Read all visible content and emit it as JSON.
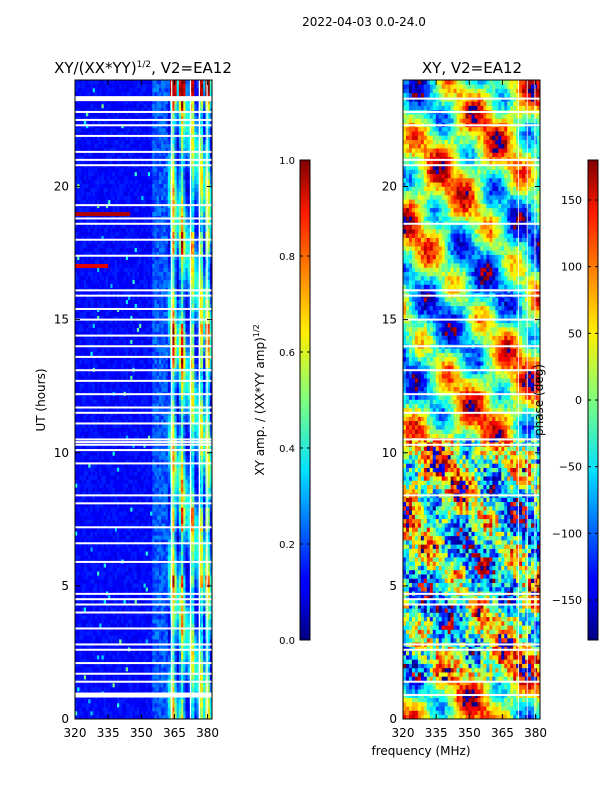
{
  "figure": {
    "suptitle": "2022-04-03 0.0-24.0",
    "xlabel_shared": "frequency (MHz)"
  },
  "chart_data": [
    {
      "type": "heatmap",
      "title_main": "XY/(XX*YY)",
      "title_exp": "1/2",
      "title_tail": ", V2=EA12",
      "ylabel": "UT (hours)",
      "xlim": [
        320,
        382
      ],
      "ylim": [
        0,
        24
      ],
      "xticks": [
        320,
        335,
        350,
        365,
        380
      ],
      "yticks": [
        0,
        5,
        10,
        15,
        20
      ],
      "colorbar": {
        "label_main": "XY amp. / (XX*YY amp)",
        "label_exp": "1/2",
        "range": [
          0.0,
          1.0
        ],
        "ticks": [
          0.0,
          0.2,
          0.4,
          0.6,
          0.8,
          1.0
        ],
        "tick_labels": [
          "0.0",
          "0.2",
          "0.4",
          "0.6",
          "0.8",
          "1.0"
        ]
      },
      "flagged_hours": [
        0.9,
        1.4,
        1.7,
        2.1,
        2.6,
        2.8,
        3.4,
        4.0,
        4.3,
        4.5,
        4.7,
        5.9,
        6.6,
        7.2,
        8.1,
        8.4,
        9.6,
        10.1,
        10.3,
        10.4,
        10.5,
        11.1,
        11.5,
        11.7,
        12.2,
        12.7,
        13.1,
        13.6,
        14.0,
        14.4,
        15.0,
        15.4,
        15.9,
        16.1,
        17.4,
        18.0,
        18.6,
        18.8,
        19.3,
        20.8,
        21.0,
        21.3,
        21.9,
        22.3,
        22.5,
        22.8,
        23.3
      ]
    },
    {
      "type": "heatmap",
      "title": "XY, V2=EA12",
      "xlim": [
        320,
        382
      ],
      "ylim": [
        0,
        24
      ],
      "xticks": [
        320,
        335,
        350,
        365,
        380
      ],
      "yticks": [
        0,
        5,
        10,
        15,
        20
      ],
      "colorbar": {
        "label": "phase (deg)",
        "range": [
          -180,
          180
        ],
        "ticks": [
          -150,
          -100,
          -50,
          0,
          50,
          100,
          150
        ],
        "tick_labels": [
          "−150",
          "−100",
          "−50",
          "0",
          "50",
          "100",
          "150"
        ]
      },
      "flagged_hours": [
        0.9,
        1.4,
        2.6,
        2.8,
        4.3,
        4.5,
        4.7,
        8.4,
        10.3,
        10.5,
        11.5,
        12.2,
        13.1,
        14.0,
        15.0,
        15.9,
        16.1,
        18.6,
        20.8,
        21.0,
        22.3,
        22.8,
        23.3
      ]
    }
  ]
}
